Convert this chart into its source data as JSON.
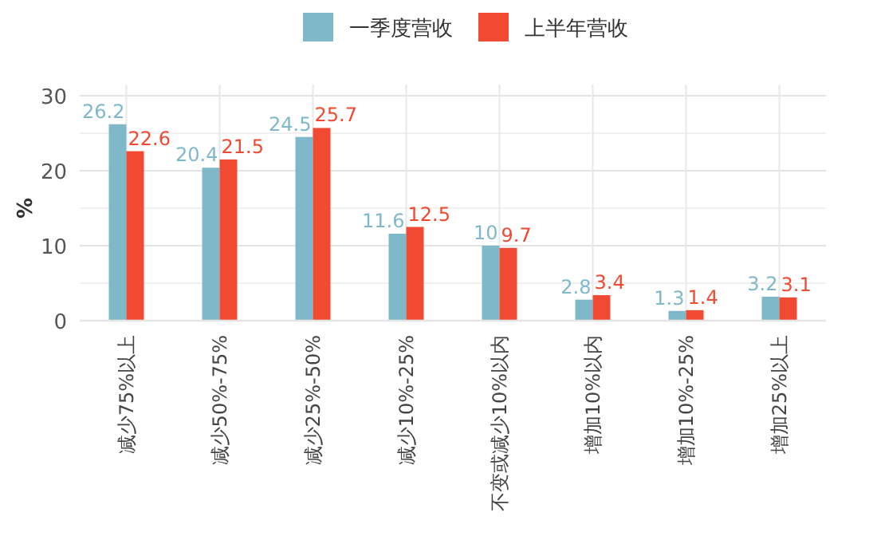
{
  "chart_data": {
    "type": "bar",
    "ylabel": "%",
    "categories": [
      "减少75%以上",
      "减少50%-75%",
      "减少25%-50%",
      "减少10%-25%",
      "不变或减少10%以内",
      "增加10%以内",
      "增加10%-25%",
      "增加25%以上"
    ],
    "series": [
      {
        "name": "一季度营收",
        "color": "#7fb9c9",
        "values": [
          26.2,
          20.4,
          24.5,
          11.6,
          10,
          2.8,
          1.3,
          3.2
        ]
      },
      {
        "name": "上半年营收",
        "color": "#f04a32",
        "values": [
          22.6,
          21.5,
          25.7,
          12.5,
          9.7,
          3.4,
          1.4,
          3.1
        ]
      }
    ],
    "ylim": [
      0,
      30
    ],
    "yticks": [
      0,
      {
        "value": 5,
        "label": null
      },
      10,
      {
        "value": 15,
        "label": null
      },
      20,
      {
        "value": 25,
        "label": null
      },
      30
    ],
    "grid": true,
    "legend": "top",
    "data_labels": true
  }
}
